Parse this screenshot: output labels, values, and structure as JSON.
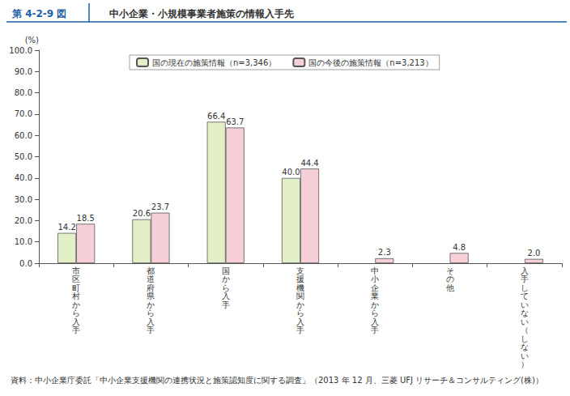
{
  "chart_data": {
    "type": "bar",
    "figure_label": "第 4-2-9 図",
    "title": "中小企業・小規模事業者施策の情報入手先",
    "y_label": "(%)",
    "source": "資料：中小企業庁委託「中小企業支援機関の連携状況と施策認知度に関する調査」（2013 年 12 月、三菱 UFJ リサーチ＆コンサルティング(株)）",
    "categories": [
      "市区町村から入手",
      "都道府県から入手",
      "国から入手",
      "支援機関から入手",
      "中小企業から入手",
      "その他",
      "入手していない（しない）"
    ],
    "series": [
      {
        "name": "国の現在の施策情報（n=3,346）",
        "color": "#e3efc6",
        "values": [
          14.2,
          20.6,
          66.4,
          40.0,
          null,
          null,
          null
        ],
        "value_labels": [
          "14.2",
          "20.6",
          "66.4",
          "40.0",
          null,
          null,
          null
        ]
      },
      {
        "name": "国の今後の施策情報（n=3,213）",
        "color": "#f6cfd7",
        "values": [
          18.5,
          23.7,
          63.7,
          44.4,
          2.3,
          4.8,
          2.0
        ],
        "value_labels": [
          "18.5",
          "23.7",
          "63.7",
          "44.4",
          "2.3",
          "4.8",
          "2.0"
        ]
      }
    ],
    "ylim": [
      0,
      100
    ],
    "yticks": [
      {
        "value": 0,
        "label": "0.0"
      },
      {
        "value": 10,
        "label": "10.0"
      },
      {
        "value": 20,
        "label": "20.0"
      },
      {
        "value": 30,
        "label": "30.0"
      },
      {
        "value": 40,
        "label": "40.0"
      },
      {
        "value": 50,
        "label": "50.0"
      },
      {
        "value": 60,
        "label": "60.0"
      },
      {
        "value": 70,
        "label": "70.0"
      },
      {
        "value": 80,
        "label": "80.0"
      },
      {
        "value": 90,
        "label": "90.0"
      },
      {
        "value": 100,
        "label": "100.0"
      }
    ],
    "grid": false,
    "legend": "top",
    "data_labels": true
  }
}
